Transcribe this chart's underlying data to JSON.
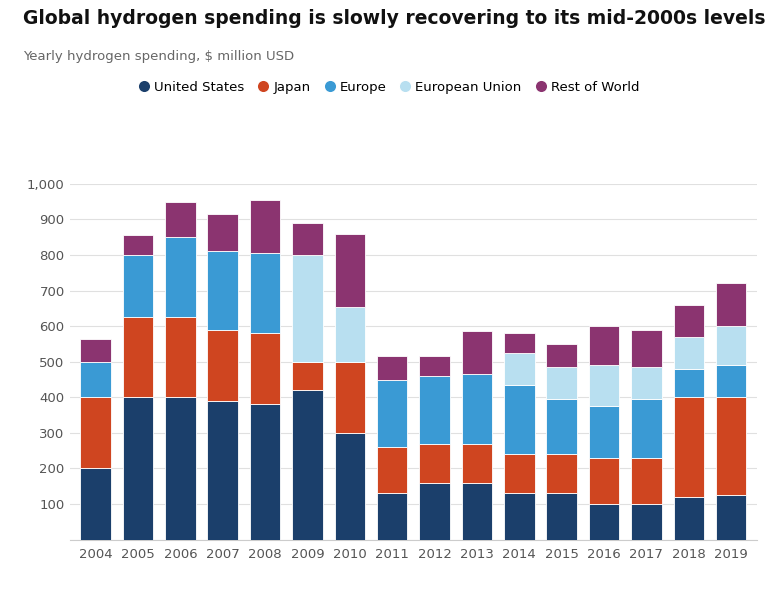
{
  "title": "Global hydrogen spending is slowly recovering to its mid-2000s levels",
  "subtitle": "Yearly hydrogen spending, $ million USD",
  "years": [
    2004,
    2005,
    2006,
    2007,
    2008,
    2009,
    2010,
    2011,
    2012,
    2013,
    2014,
    2015,
    2016,
    2017,
    2018,
    2019
  ],
  "series": {
    "United States": [
      200,
      400,
      400,
      390,
      380,
      420,
      300,
      130,
      160,
      160,
      130,
      130,
      100,
      100,
      120,
      125
    ],
    "Japan": [
      200,
      225,
      225,
      200,
      200,
      80,
      200,
      130,
      110,
      110,
      110,
      110,
      130,
      130,
      280,
      275
    ],
    "Europe": [
      100,
      175,
      225,
      220,
      225,
      0,
      0,
      190,
      190,
      195,
      195,
      155,
      145,
      165,
      80,
      90
    ],
    "European Union": [
      0,
      0,
      0,
      0,
      0,
      300,
      155,
      0,
      0,
      0,
      90,
      90,
      115,
      90,
      90,
      110
    ],
    "Rest of World": [
      65,
      55,
      100,
      105,
      150,
      90,
      205,
      65,
      55,
      120,
      55,
      65,
      110,
      105,
      90,
      120
    ]
  },
  "colors": {
    "United States": "#1b3f6b",
    "Japan": "#cf4520",
    "Europe": "#3a9ad4",
    "European Union": "#b8dff0",
    "Rest of World": "#8b3470"
  },
  "ylim": [
    0,
    1000
  ],
  "yticks": [
    0,
    100,
    200,
    300,
    400,
    500,
    600,
    700,
    800,
    900,
    1000
  ],
  "background_color": "#ffffff",
  "grid_color": "#e0e0e0"
}
